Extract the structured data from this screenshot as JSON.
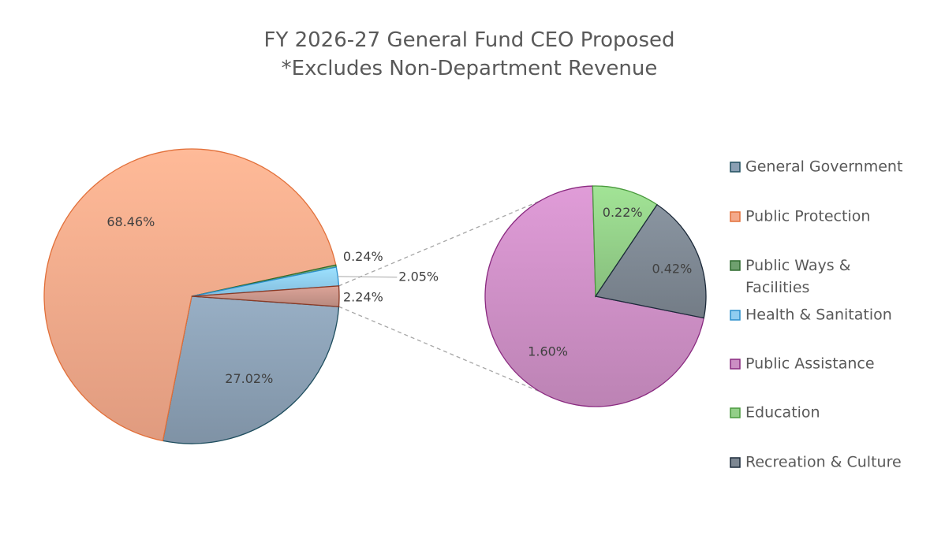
{
  "chart_data": {
    "type": "pie",
    "subtype": "pie-of-pie",
    "title": "FY 2026-27 General Fund CEO Proposed",
    "subtitle": "*Excludes Non-Department Revenue",
    "legend_position": "right",
    "series": [
      {
        "name": "General Government",
        "value": 27.02,
        "label": "27.02%",
        "color": "#8a9fb3",
        "stroke": "#1f4e5f",
        "pie": "main"
      },
      {
        "name": "Public Protection",
        "value": 68.46,
        "label": "68.46%",
        "color": "#f4a98a",
        "stroke": "#e2703a",
        "pie": "main"
      },
      {
        "name": "Public Ways & Facilities",
        "value": 0.24,
        "label": "0.24%",
        "color": "#6fa06f",
        "stroke": "#2e6b2e",
        "pie": "main"
      },
      {
        "name": "Health & Sanitation",
        "value": 2.05,
        "label": "2.05%",
        "color": "#8fcdf0",
        "stroke": "#2a8fcc",
        "pie": "main"
      },
      {
        "name": "Public Assistance",
        "value": 1.6,
        "label": "1.60%",
        "color": "#cc8ec4",
        "stroke": "#8a2a80",
        "pie": "secondary"
      },
      {
        "name": "Education",
        "value": 0.22,
        "label": "0.22%",
        "color": "#93cf88",
        "stroke": "#4a9a3e",
        "pie": "secondary"
      },
      {
        "name": "Recreation & Culture",
        "value": 0.42,
        "label": "0.42%",
        "color": "#7d8792",
        "stroke": "#1c2a3a",
        "pie": "secondary"
      }
    ],
    "other_slice": {
      "value": 2.24,
      "label": "2.24%",
      "color": "#c8958a",
      "stroke": "#8a3a25"
    }
  }
}
